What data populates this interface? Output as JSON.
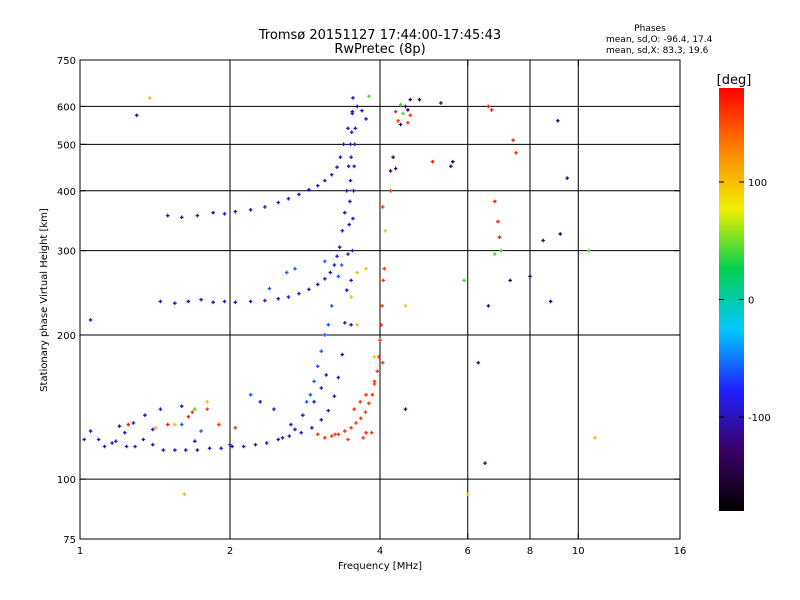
{
  "chart_data": {
    "type": "scatter",
    "title": "Tromsø 20151127 17:44:00-17:45:43",
    "subtitle": "RwPretec (8p)",
    "stats": {
      "heading": "Phases",
      "line_o": "mean, sd,O: -96.4, 17.4",
      "line_x": "mean, sd,X:  83.3, 19.6"
    },
    "xlabel": "Frequency [MHz]",
    "ylabel": "Stationary phase Virtual Height [km]",
    "x_scale": "log",
    "y_scale": "log",
    "xlim": [
      1,
      16
    ],
    "ylim": [
      75,
      750
    ],
    "xticks": [
      {
        "value": 1,
        "label": "1"
      },
      {
        "value": 2,
        "label": "2"
      },
      {
        "value": 4,
        "label": "4"
      },
      {
        "value": 6,
        "label": "6"
      },
      {
        "value": 8,
        "label": "8"
      },
      {
        "value": 10,
        "label": "10"
      },
      {
        "value": 16,
        "label": "16"
      }
    ],
    "xgrid": [
      2,
      4,
      6,
      8,
      10
    ],
    "yticks": [
      {
        "value": 75,
        "label": "75"
      },
      {
        "value": 100,
        "label": "100"
      },
      {
        "value": 200,
        "label": "200"
      },
      {
        "value": 300,
        "label": "300"
      },
      {
        "value": 400,
        "label": "400"
      },
      {
        "value": 500,
        "label": "500"
      },
      {
        "value": 600,
        "label": "600"
      },
      {
        "value": 750,
        "label": "750"
      }
    ],
    "ygrid": [
      100,
      200,
      300,
      400,
      500,
      600
    ],
    "grid": true,
    "colorbar": {
      "label": "[deg]",
      "range": [
        -180,
        180
      ],
      "ticks": [
        {
          "value": 100,
          "label": "100"
        },
        {
          "value": 0,
          "label": "0"
        },
        {
          "value": -100,
          "label": "-100"
        }
      ],
      "colors": [
        "#000000",
        "#3a0066",
        "#2020ff",
        "#00c8ff",
        "#00d050",
        "#f0f000",
        "#ff8000",
        "#ff0000"
      ]
    },
    "series": [
      {
        "color_value": -100,
        "points": [
          [
            1.02,
            121
          ],
          [
            1.05,
            126
          ],
          [
            1.09,
            121
          ],
          [
            1.12,
            117
          ],
          [
            1.16,
            119
          ],
          [
            1.2,
            129
          ],
          [
            1.24,
            117
          ],
          [
            1.29,
            117
          ],
          [
            1.34,
            121
          ],
          [
            1.4,
            118
          ],
          [
            1.47,
            115
          ],
          [
            1.55,
            115
          ],
          [
            1.63,
            115
          ],
          [
            1.72,
            115
          ],
          [
            1.82,
            116
          ],
          [
            1.92,
            116
          ],
          [
            2.02,
            117
          ],
          [
            2.13,
            117
          ],
          [
            2.25,
            118
          ],
          [
            2.37,
            119
          ],
          [
            2.5,
            121
          ],
          [
            2.63,
            123
          ],
          [
            2.78,
            125
          ],
          [
            2.92,
            128
          ],
          [
            3.05,
            133
          ],
          [
            3.15,
            139
          ],
          [
            3.24,
            149
          ],
          [
            3.3,
            163
          ],
          [
            3.36,
            182
          ],
          [
            3.4,
            212
          ],
          [
            3.43,
            248
          ],
          [
            3.45,
            295
          ],
          [
            3.47,
            340
          ],
          [
            3.48,
            380
          ],
          [
            3.49,
            420
          ],
          [
            3.5,
            470
          ],
          [
            3.51,
            530
          ],
          [
            3.52,
            585
          ],
          [
            3.53,
            625
          ],
          [
            1.45,
            235
          ],
          [
            1.55,
            233
          ],
          [
            1.65,
            235
          ],
          [
            1.75,
            237
          ],
          [
            1.85,
            234
          ],
          [
            1.95,
            235
          ],
          [
            2.05,
            234
          ],
          [
            2.2,
            235
          ],
          [
            2.35,
            236
          ],
          [
            2.5,
            238
          ],
          [
            2.62,
            240
          ],
          [
            2.75,
            244
          ],
          [
            2.88,
            249
          ],
          [
            3.0,
            255
          ],
          [
            3.1,
            262
          ],
          [
            3.18,
            270
          ],
          [
            3.24,
            280
          ],
          [
            3.28,
            292
          ],
          [
            3.32,
            305
          ],
          [
            3.36,
            330
          ],
          [
            3.4,
            360
          ],
          [
            3.43,
            400
          ],
          [
            3.46,
            450
          ],
          [
            3.49,
            500
          ],
          [
            1.5,
            355
          ],
          [
            1.6,
            352
          ],
          [
            1.72,
            355
          ],
          [
            1.85,
            360
          ],
          [
            1.95,
            358
          ],
          [
            2.05,
            362
          ],
          [
            2.2,
            365
          ],
          [
            2.35,
            370
          ],
          [
            2.5,
            378
          ],
          [
            2.62,
            385
          ],
          [
            2.75,
            393
          ],
          [
            2.88,
            402
          ],
          [
            3.0,
            410
          ],
          [
            3.1,
            420
          ],
          [
            3.2,
            432
          ],
          [
            3.28,
            448
          ],
          [
            3.33,
            470
          ],
          [
            3.38,
            500
          ],
          [
            3.45,
            540
          ],
          [
            3.52,
            580
          ],
          [
            3.6,
            600
          ],
          [
            3.68,
            588
          ],
          [
            3.75,
            565
          ],
          [
            2.65,
            130
          ],
          [
            2.8,
            136
          ],
          [
            2.95,
            145
          ],
          [
            3.05,
            155
          ],
          [
            3.12,
            165
          ],
          [
            1.35,
            136
          ],
          [
            1.45,
            140
          ],
          [
            1.6,
            142
          ],
          [
            2.3,
            145
          ],
          [
            2.45,
            140
          ],
          [
            3.5,
            210
          ],
          [
            3.5,
            260
          ],
          [
            3.52,
            300
          ],
          [
            3.53,
            350
          ],
          [
            3.54,
            400
          ],
          [
            3.55,
            450
          ],
          [
            3.56,
            500
          ],
          [
            3.57,
            540
          ],
          [
            1.05,
            215
          ],
          [
            1.3,
            575
          ],
          [
            1.18,
            120
          ],
          [
            1.23,
            125
          ],
          [
            1.28,
            131
          ],
          [
            1.4,
            127
          ],
          [
            1.7,
            120
          ],
          [
            2.0,
            118
          ],
          [
            2.55,
            122
          ],
          [
            2.7,
            127
          ]
        ]
      },
      {
        "color_value": 160,
        "points": [
          [
            3.0,
            124
          ],
          [
            3.1,
            122
          ],
          [
            3.2,
            123
          ],
          [
            3.3,
            124
          ],
          [
            3.4,
            126
          ],
          [
            3.5,
            128
          ],
          [
            3.58,
            131
          ],
          [
            3.66,
            134
          ],
          [
            3.74,
            138
          ],
          [
            3.8,
            144
          ],
          [
            3.86,
            150
          ],
          [
            3.9,
            158
          ],
          [
            3.95,
            168
          ],
          [
            3.98,
            180
          ],
          [
            4.0,
            195
          ],
          [
            4.02,
            210
          ],
          [
            4.04,
            230
          ],
          [
            4.06,
            260
          ],
          [
            4.08,
            275
          ],
          [
            3.85,
            125
          ],
          [
            3.7,
            122
          ],
          [
            3.45,
            121
          ],
          [
            3.25,
            124
          ],
          [
            3.55,
            140
          ],
          [
            3.65,
            145
          ],
          [
            3.75,
            150
          ],
          [
            3.9,
            160
          ],
          [
            4.05,
            175
          ],
          [
            4.55,
            555
          ],
          [
            4.6,
            575
          ],
          [
            4.35,
            560
          ],
          [
            4.3,
            585
          ],
          [
            1.8,
            140
          ],
          [
            2.05,
            128
          ],
          [
            1.68,
            138
          ],
          [
            1.9,
            130
          ],
          [
            4.2,
            400
          ],
          [
            4.05,
            370
          ]
        ]
      },
      {
        "color_value": -60,
        "points": [
          [
            2.95,
            160
          ],
          [
            3.0,
            172
          ],
          [
            3.05,
            185
          ],
          [
            3.1,
            200
          ],
          [
            2.9,
            150
          ],
          [
            3.15,
            210
          ],
          [
            2.85,
            145
          ],
          [
            3.2,
            230
          ],
          [
            3.3,
            265
          ],
          [
            3.35,
            280
          ],
          [
            2.4,
            250
          ],
          [
            2.6,
            270
          ],
          [
            2.7,
            275
          ],
          [
            3.1,
            285
          ],
          [
            1.6,
            130
          ],
          [
            1.75,
            126
          ],
          [
            2.2,
            150
          ]
        ]
      },
      {
        "color_value": 100,
        "points": [
          [
            1.38,
            625
          ],
          [
            1.42,
            128
          ],
          [
            1.55,
            130
          ],
          [
            1.7,
            140
          ],
          [
            1.8,
            145
          ],
          [
            3.6,
            270
          ],
          [
            3.75,
            275
          ],
          [
            3.9,
            180
          ],
          [
            4.5,
            230
          ],
          [
            10.8,
            122
          ],
          [
            6.0,
            93
          ],
          [
            1.62,
            93
          ],
          [
            3.5,
            240
          ],
          [
            3.6,
            210
          ],
          [
            4.1,
            330
          ]
        ]
      },
      {
        "color_value": 170,
        "points": [
          [
            6.9,
            345
          ],
          [
            6.8,
            380
          ],
          [
            6.95,
            320
          ],
          [
            7.0,
            300
          ],
          [
            7.4,
            510
          ],
          [
            7.5,
            480
          ],
          [
            6.6,
            600
          ],
          [
            6.7,
            590
          ],
          [
            5.1,
            460
          ],
          [
            1.5,
            130
          ],
          [
            1.65,
            135
          ],
          [
            1.25,
            130
          ],
          [
            3.75,
            125
          ]
        ]
      },
      {
        "color_value": -130,
        "points": [
          [
            4.5,
            600
          ],
          [
            4.55,
            590
          ],
          [
            4.6,
            620
          ],
          [
            4.4,
            550
          ],
          [
            4.25,
            470
          ],
          [
            4.2,
            440
          ],
          [
            4.3,
            445
          ],
          [
            5.55,
            450
          ],
          [
            5.6,
            460
          ],
          [
            4.8,
            620
          ],
          [
            5.3,
            610
          ],
          [
            6.5,
            108
          ],
          [
            8.0,
            265
          ],
          [
            9.1,
            560
          ],
          [
            9.5,
            425
          ],
          [
            9.2,
            325
          ],
          [
            8.5,
            315
          ],
          [
            7.3,
            260
          ],
          [
            6.3,
            175
          ],
          [
            6.6,
            230
          ],
          [
            8.8,
            235
          ],
          [
            4.5,
            140
          ]
        ]
      },
      {
        "color_value": 40,
        "points": [
          [
            5.9,
            260
          ],
          [
            7.0,
            300
          ],
          [
            6.8,
            295
          ],
          [
            4.4,
            605
          ],
          [
            4.45,
            580
          ],
          [
            3.8,
            630
          ],
          [
            10.5,
            300
          ],
          [
            1.7,
            140
          ]
        ]
      }
    ]
  }
}
